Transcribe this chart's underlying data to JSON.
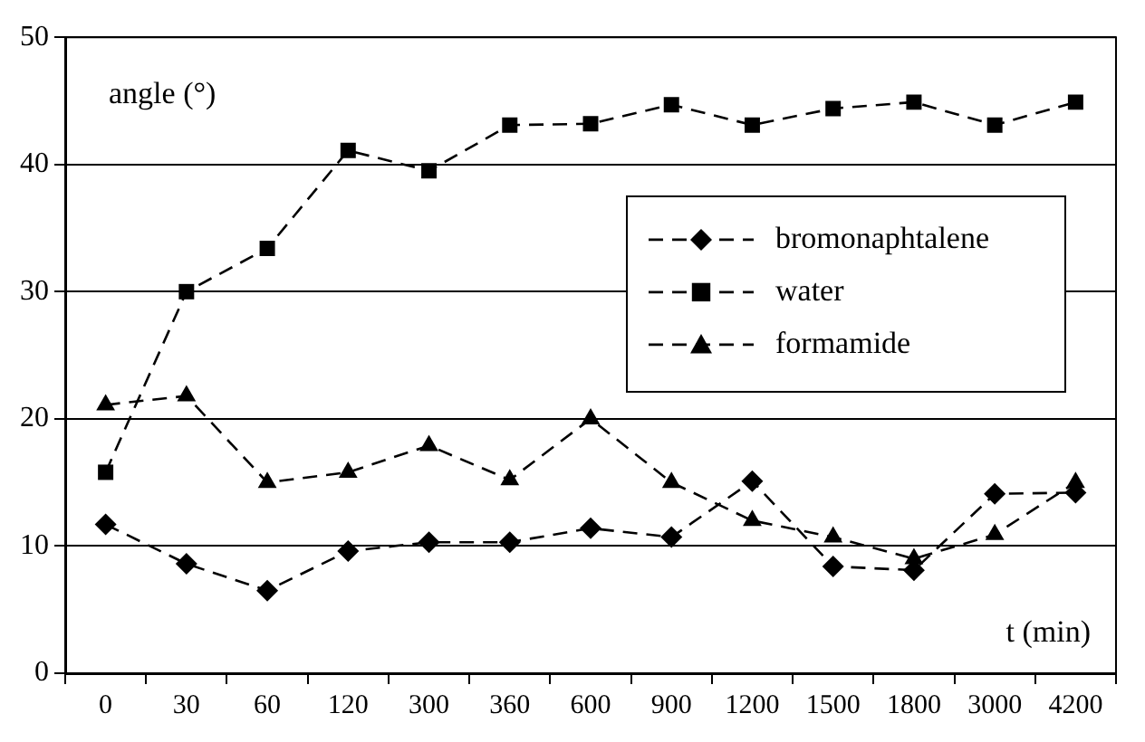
{
  "chart_data": {
    "type": "line",
    "xlabel": "t (min)",
    "ylabel": "angle (°)",
    "categories": [
      "0",
      "30",
      "60",
      "120",
      "300",
      "360",
      "600",
      "900",
      "1200",
      "1500",
      "1800",
      "3000",
      "4200"
    ],
    "series": [
      {
        "name": "bromonaphtalene",
        "color": "#000000",
        "marker": "diamond",
        "values": [
          11.7,
          8.6,
          6.5,
          9.6,
          10.3,
          10.3,
          11.4,
          10.7,
          15.1,
          8.4,
          8.1,
          14.1,
          14.2
        ]
      },
      {
        "name": "water",
        "color": "#000000",
        "marker": "square",
        "values": [
          15.8,
          30.0,
          33.4,
          41.1,
          39.5,
          43.1,
          43.2,
          44.7,
          43.1,
          44.4,
          44.9,
          43.1,
          44.9
        ]
      },
      {
        "name": "formamide",
        "color": "#000000",
        "marker": "triangle",
        "values": [
          21.1,
          21.8,
          15.0,
          15.8,
          17.9,
          15.2,
          20.0,
          15.0,
          12.0,
          10.7,
          9.0,
          10.9,
          15.0
        ]
      }
    ],
    "ylim": [
      0,
      50
    ],
    "yticks": [
      0,
      10,
      20,
      30,
      40,
      50
    ],
    "grid": "y",
    "legend": "right",
    "line_style": "dashed"
  }
}
